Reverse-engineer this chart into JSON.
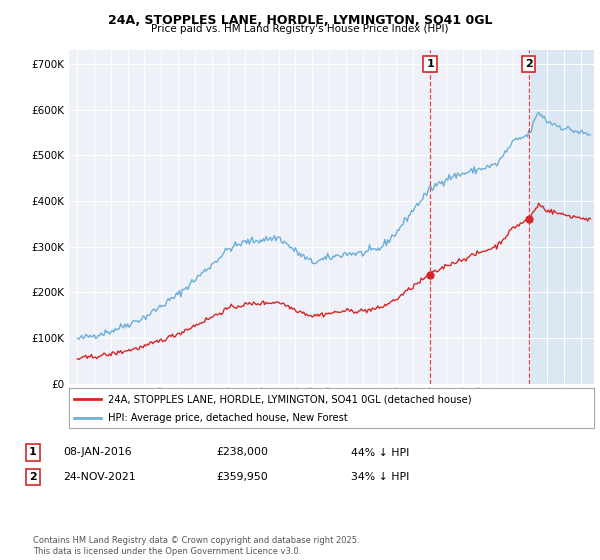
{
  "title": "24A, STOPPLES LANE, HORDLE, LYMINGTON, SO41 0GL",
  "subtitle": "Price paid vs. HM Land Registry's House Price Index (HPI)",
  "legend_label_red": "24A, STOPPLES LANE, HORDLE, LYMINGTON, SO41 0GL (detached house)",
  "legend_label_blue": "HPI: Average price, detached house, New Forest",
  "sale1_label": "1",
  "sale1_date": "08-JAN-2016",
  "sale1_price": "£238,000",
  "sale1_hpi": "44% ↓ HPI",
  "sale1_year": 2016.03,
  "sale1_value": 238000,
  "sale2_label": "2",
  "sale2_date": "24-NOV-2021",
  "sale2_price": "£359,950",
  "sale2_hpi": "34% ↓ HPI",
  "sale2_year": 2021.9,
  "sale2_value": 359950,
  "ylim": [
    0,
    730000
  ],
  "xlim_start": 1994.5,
  "xlim_end": 2025.8,
  "footer_text": "Contains HM Land Registry data © Crown copyright and database right 2025.\nThis data is licensed under the Open Government Licence v3.0.",
  "hpi_color": "#6baed6",
  "price_color": "#d62728",
  "shade_color": "#c6dbef",
  "shade_alpha": 0.45,
  "background_color": "#eef2f8",
  "shade_start": 2022.0,
  "hpi_cp_times": [
    1995,
    1997,
    1999,
    2001,
    2003,
    2004,
    2005,
    2007,
    2008,
    2009,
    2010,
    2011,
    2012,
    2013,
    2014,
    2015,
    2016,
    2017,
    2018,
    2019,
    2020,
    2021,
    2021.9,
    2022.5,
    2023,
    2024,
    2025.5
  ],
  "hpi_cp_vals": [
    97000,
    115000,
    145000,
    195000,
    260000,
    295000,
    310000,
    320000,
    290000,
    265000,
    275000,
    285000,
    285000,
    295000,
    330000,
    380000,
    425000,
    450000,
    460000,
    470000,
    480000,
    530000,
    545000,
    595000,
    575000,
    560000,
    545000
  ],
  "price_ratio_before": 0.56,
  "price_ratio_after": 0.66,
  "noise_seed": 42,
  "noise_hpi": 4000,
  "noise_price": 2500
}
